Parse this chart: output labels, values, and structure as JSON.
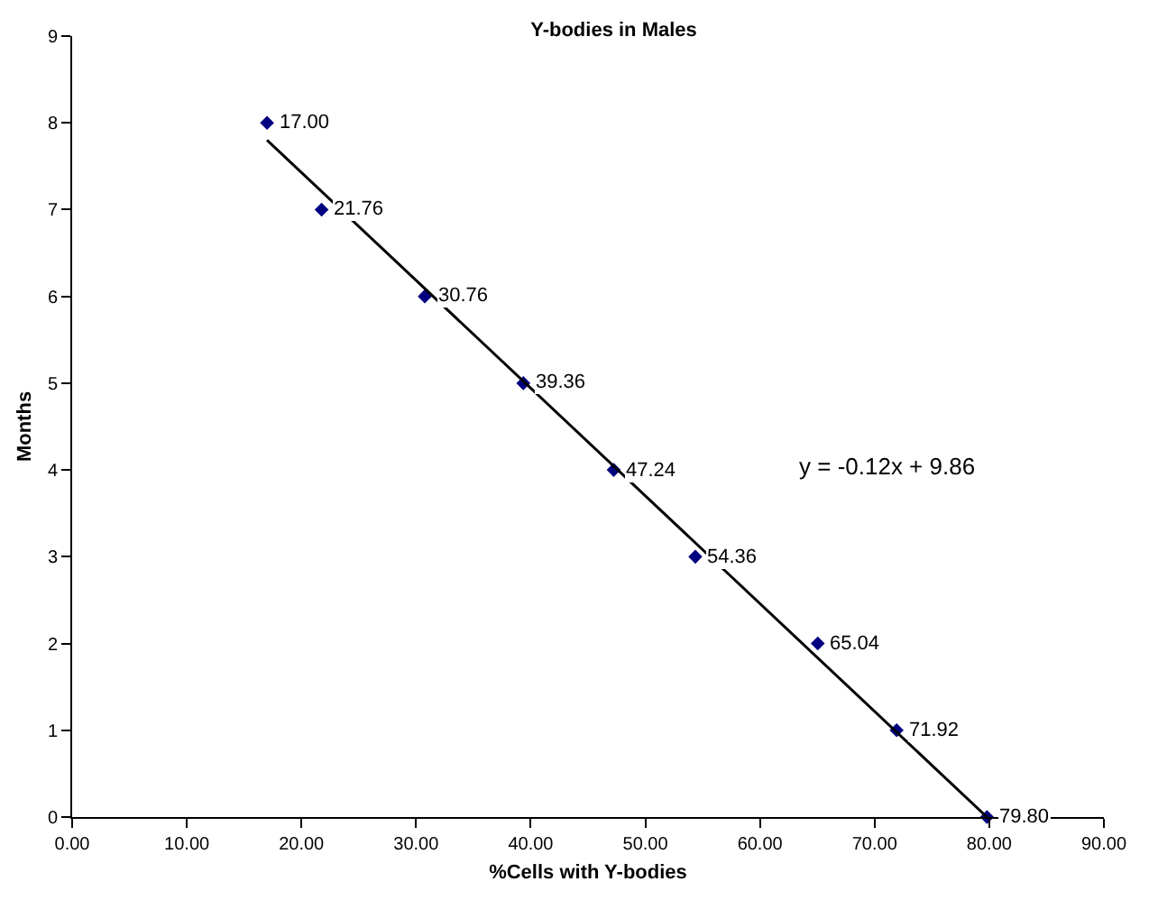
{
  "chart_data": {
    "type": "scatter",
    "title": "Y-bodies in Males",
    "xlabel": "%Cells with Y-bodies",
    "ylabel": "Months",
    "x": [
      17.0,
      21.76,
      30.76,
      39.36,
      47.24,
      54.36,
      65.04,
      71.92,
      79.8
    ],
    "series": [
      {
        "color": "#000080",
        "values": [
          8,
          7,
          6,
          5,
          4,
          3,
          2,
          1,
          0
        ]
      },
      {
        "type": "line",
        "marker": "none",
        "color": "#000000",
        "x": [
          17.0,
          79.8
        ],
        "values": [
          7.8,
          0
        ]
      }
    ],
    "annotations": [
      "y = -0.12x + 9.86",
      {
        "text": "17.00",
        "x": 17.0,
        "y": 8
      },
      {
        "text": "21.76",
        "x": 21.76,
        "y": 7
      },
      {
        "text": "30.76",
        "x": 30.76,
        "y": 6
      },
      {
        "text": "39.36",
        "x": 39.36,
        "y": 5
      },
      {
        "text": "47.24",
        "x": 47.24,
        "y": 4
      },
      {
        "text": "54.36",
        "x": 54.36,
        "y": 3
      },
      {
        "text": "65.04",
        "x": 65.04,
        "y": 2
      },
      {
        "text": "71.92",
        "x": 71.92,
        "y": 1
      },
      {
        "text": "79.80",
        "x": 79.8,
        "y": 0
      }
    ],
    "xlim": [
      0,
      90
    ],
    "ylim": [
      0,
      9
    ],
    "xticks": [
      {
        "value": 0,
        "label": "0.00"
      },
      {
        "value": 10,
        "label": "10.00"
      },
      {
        "value": 20,
        "label": "20.00"
      },
      {
        "value": 30,
        "label": "30.00"
      },
      {
        "value": 40,
        "label": "40.00"
      },
      {
        "value": 50,
        "label": "50.00"
      },
      {
        "value": 60,
        "label": "60.00"
      },
      {
        "value": 70,
        "label": "70.00"
      },
      {
        "value": 80,
        "label": "80.00"
      },
      {
        "value": 90,
        "label": "90.00"
      }
    ],
    "yticks": [
      0,
      1,
      2,
      3,
      4,
      5,
      6,
      7,
      8,
      9
    ],
    "grid": false,
    "marker": "diamond",
    "line_style": "solid"
  }
}
